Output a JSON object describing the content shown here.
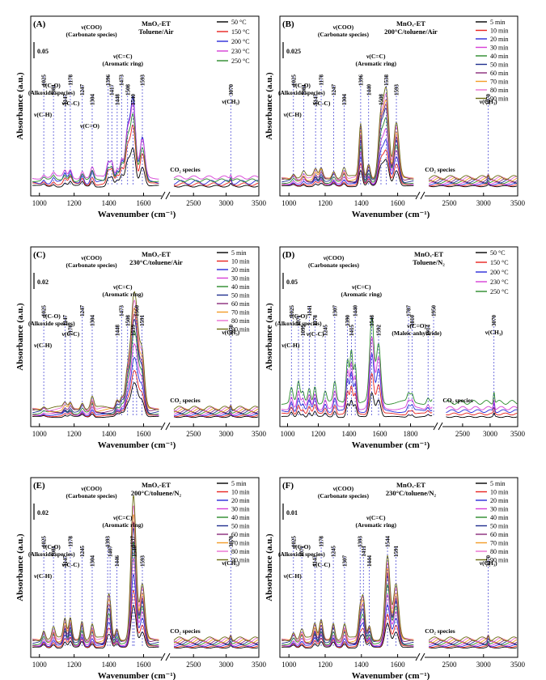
{
  "chart_data": [
    {
      "type": "line",
      "panel_letter": "(A)",
      "info_lines": [
        "MnOₓ-ET",
        "Toluene/Air"
      ],
      "scale": "0.05",
      "xlabel": "Wavenumber (cm⁻¹)",
      "ylabel": "Absorbance (a.u.)",
      "x_ticks": [
        "1000",
        "1200",
        "1400",
        "1600",
        "2500",
        "3000",
        "3500"
      ],
      "series": [
        {
          "name": "50 °C",
          "color": "#000000",
          "scale": 0.45,
          "offset": 0.0
        },
        {
          "name": "150 °C",
          "color": "#e8231f",
          "scale": 0.7,
          "offset": 0.02
        },
        {
          "name": "200 °C",
          "color": "#2b2bd9",
          "scale": 1.0,
          "offset": 0.04
        },
        {
          "name": "230 °C",
          "color": "#d63fd6",
          "scale": 0.85,
          "offset": 0.09
        },
        {
          "name": "250 °C",
          "color": "#2a8a2a",
          "scale": 0.75,
          "offset": 0.06
        }
      ],
      "peaks": [
        1025,
        1081,
        1147,
        1178,
        1247,
        1304,
        1396,
        1417,
        1448,
        1473,
        1508,
        1540,
        1593,
        3070
      ],
      "peak_heights": [
        0.04,
        0.05,
        0.08,
        0.1,
        0.09,
        0.12,
        0.18,
        0.2,
        0.12,
        0.22,
        0.55,
        0.85,
        0.45,
        0.05
      ],
      "band_labels": [
        {
          "text": "ν(COO)",
          "sub": "(Carbonate species)"
        },
        {
          "text": "ν(C=C)",
          "sub": "(Aromatic ring)"
        },
        {
          "text": "ν(C-O)",
          "sub": "(Alkoxide species)"
        },
        {
          "text": "ν(C-C)",
          "sub": ""
        },
        {
          "text": "ν(C-H)",
          "sub": ""
        },
        {
          "text": "ν(C=O)",
          "sub": ""
        },
        {
          "text": "ν(CH₃)",
          "sub": ""
        },
        {
          "text": "CO₂ species",
          "sub": ""
        }
      ]
    },
    {
      "type": "line",
      "panel_letter": "(B)",
      "info_lines": [
        "MnOₓ-ET",
        "200°C/toluene/Air"
      ],
      "scale": "0.025",
      "xlabel": "Wavenumber (cm⁻¹)",
      "ylabel": "Absorbance (a.u.)",
      "x_ticks": [
        "1000",
        "1200",
        "1400",
        "1600",
        "2500",
        "3000",
        "3500"
      ],
      "series": [
        {
          "name": "5 min",
          "color": "#000000",
          "scale": 0.3,
          "offset": 0.0
        },
        {
          "name": "10 min",
          "color": "#e8231f",
          "scale": 0.4,
          "offset": 0.01
        },
        {
          "name": "20 min",
          "color": "#2b2bd9",
          "scale": 0.5,
          "offset": 0.02
        },
        {
          "name": "30 min",
          "color": "#d63fd6",
          "scale": 0.6,
          "offset": 0.03
        },
        {
          "name": "40 min",
          "color": "#2a8a2a",
          "scale": 0.7,
          "offset": 0.04
        },
        {
          "name": "50 min",
          "color": "#1f2f8f",
          "scale": 0.8,
          "offset": 0.05
        },
        {
          "name": "60 min",
          "color": "#8a2a7a",
          "scale": 0.85,
          "offset": 0.06
        },
        {
          "name": "70 min",
          "color": "#f39c26",
          "scale": 0.9,
          "offset": 0.07
        },
        {
          "name": "80 min",
          "color": "#e96fd0",
          "scale": 0.95,
          "offset": 0.08
        },
        {
          "name": "90 min",
          "color": "#6b6b12",
          "scale": 1.0,
          "offset": 0.09
        }
      ],
      "peaks": [
        1025,
        1081,
        1147,
        1178,
        1247,
        1304,
        1396,
        1440,
        1508,
        1538,
        1593,
        3070
      ],
      "peak_heights": [
        0.05,
        0.06,
        0.08,
        0.1,
        0.08,
        0.1,
        0.55,
        0.15,
        0.65,
        0.85,
        0.55,
        0.04
      ],
      "band_labels": [
        {
          "text": "ν(COO)",
          "sub": "(Carbonate species)"
        },
        {
          "text": "ν(C=C)",
          "sub": "(Aromatic ring)"
        },
        {
          "text": "ν(C-O)",
          "sub": "(Alkoxide species)"
        },
        {
          "text": "ν(C-H)",
          "sub": ""
        },
        {
          "text": "ν(C-C)",
          "sub": ""
        },
        {
          "text": "ν(CH₃)",
          "sub": ""
        },
        {
          "text": "CO₂ species",
          "sub": ""
        }
      ]
    },
    {
      "type": "line",
      "panel_letter": "(C)",
      "info_lines": [
        "MnOₓ-ET",
        "230°C/toluene/Air"
      ],
      "scale": "0.02",
      "xlabel": "Wavenumber (cm⁻¹)",
      "ylabel": "Absorbance (a.u.)",
      "x_ticks": [
        "1000",
        "1200",
        "1400",
        "1600",
        "2500",
        "3000",
        "3500"
      ],
      "series": [
        {
          "name": "5 min",
          "color": "#000000",
          "scale": 0.3,
          "offset": 0.0
        },
        {
          "name": "10 min",
          "color": "#e8231f",
          "scale": 0.4,
          "offset": 0.01
        },
        {
          "name": "20 min",
          "color": "#2b2bd9",
          "scale": 0.5,
          "offset": 0.02
        },
        {
          "name": "30 min",
          "color": "#d63fd6",
          "scale": 0.6,
          "offset": 0.03
        },
        {
          "name": "40 min",
          "color": "#2a8a2a",
          "scale": 0.7,
          "offset": 0.04
        },
        {
          "name": "50 min",
          "color": "#1f2f8f",
          "scale": 0.8,
          "offset": 0.05
        },
        {
          "name": "60 min",
          "color": "#8a2a7a",
          "scale": 0.85,
          "offset": 0.06
        },
        {
          "name": "70 min",
          "color": "#f39c26",
          "scale": 0.9,
          "offset": 0.07
        },
        {
          "name": "80 min",
          "color": "#e96fd0",
          "scale": 0.95,
          "offset": 0.08
        },
        {
          "name": "90 min",
          "color": "#6b6b12",
          "scale": 1.0,
          "offset": 0.09
        }
      ],
      "peaks": [
        1025,
        1147,
        1178,
        1247,
        1304,
        1448,
        1473,
        1508,
        1539,
        1560,
        1591,
        3070
      ],
      "peak_heights": [
        0.03,
        0.05,
        0.06,
        0.07,
        0.12,
        0.1,
        0.12,
        0.4,
        0.85,
        0.7,
        0.55,
        0.04
      ],
      "band_labels": [
        {
          "text": "ν(COO)",
          "sub": "(Carbonate species)"
        },
        {
          "text": "ν(C=C)",
          "sub": "(Aromatic ring)"
        },
        {
          "text": "ν(C-O)",
          "sub": "(Alkoxide species)"
        },
        {
          "text": "ν(C-C)",
          "sub": ""
        },
        {
          "text": "ν(C-H)",
          "sub": ""
        },
        {
          "text": "ν(CH₃)",
          "sub": ""
        },
        {
          "text": "CO₂ species",
          "sub": ""
        }
      ]
    },
    {
      "type": "line",
      "panel_letter": "(D)",
      "info_lines": [
        "MnOₓ-ET",
        "Toluene/N₂"
      ],
      "scale": "0.05",
      "xlabel": "Wavenumber (cm⁻¹)",
      "ylabel": "Absorbance (a.u.)",
      "x_ticks": [
        "1000",
        "1200",
        "1400",
        "1600",
        "1800",
        "2500",
        "3000",
        "3500"
      ],
      "series": [
        {
          "name": "50 °C",
          "color": "#000000",
          "scale": 0.3,
          "offset": 0.0
        },
        {
          "name": "150 °C",
          "color": "#e8231f",
          "scale": 0.5,
          "offset": 0.03
        },
        {
          "name": "200 °C",
          "color": "#2b2bd9",
          "scale": 0.7,
          "offset": 0.06
        },
        {
          "name": "230 °C",
          "color": "#d63fd6",
          "scale": 0.85,
          "offset": 0.09
        },
        {
          "name": "250 °C",
          "color": "#2a8a2a",
          "scale": 1.0,
          "offset": 0.15
        }
      ],
      "peaks": [
        1025,
        1071,
        1099,
        1141,
        1178,
        1245,
        1307,
        1390,
        1415,
        1440,
        1548,
        1592,
        1787,
        1810,
        1914,
        1950,
        3070
      ],
      "peak_heights": [
        0.15,
        0.2,
        0.1,
        0.15,
        0.18,
        0.12,
        0.2,
        0.45,
        0.55,
        0.4,
        0.85,
        0.6,
        0.08,
        0.08,
        0.06,
        0.06,
        0.12
      ],
      "band_labels": [
        {
          "text": "ν(COO)",
          "sub": "(Carbonate species)"
        },
        {
          "text": "ν(C=C)",
          "sub": "(Aromatic ring)"
        },
        {
          "text": "ν(C-O)",
          "sub": "(Alkoxide species)"
        },
        {
          "text": "ν(C-H)",
          "sub": ""
        },
        {
          "text": "ν(C-C)",
          "sub": ""
        },
        {
          "text": "ν(C=O)",
          "sub": "(Maleic anhydride)"
        },
        {
          "text": "ν(CH₃)",
          "sub": ""
        },
        {
          "text": "CO₂ species",
          "sub": ""
        }
      ]
    },
    {
      "type": "line",
      "panel_letter": "(E)",
      "info_lines": [
        "MnOₓ-ET",
        "200°C/toluene/N₂"
      ],
      "scale": "0.02",
      "xlabel": "Wavenumber (cm⁻¹)",
      "ylabel": "Absorbance (a.u.)",
      "x_ticks": [
        "1000",
        "1200",
        "1400",
        "1600",
        "2500",
        "3000",
        "3500"
      ],
      "series": [
        {
          "name": "5 min",
          "color": "#000000",
          "scale": 0.3,
          "offset": 0.0
        },
        {
          "name": "10 min",
          "color": "#e8231f",
          "scale": 0.4,
          "offset": 0.01
        },
        {
          "name": "20 min",
          "color": "#2b2bd9",
          "scale": 0.5,
          "offset": 0.02
        },
        {
          "name": "30 min",
          "color": "#d63fd6",
          "scale": 0.6,
          "offset": 0.03
        },
        {
          "name": "40 min",
          "color": "#2a8a2a",
          "scale": 0.7,
          "offset": 0.04
        },
        {
          "name": "50 min",
          "color": "#1f2f8f",
          "scale": 0.8,
          "offset": 0.05
        },
        {
          "name": "60 min",
          "color": "#8a2a7a",
          "scale": 0.85,
          "offset": 0.06
        },
        {
          "name": "70 min",
          "color": "#f39c26",
          "scale": 0.9,
          "offset": 0.07
        },
        {
          "name": "80 min",
          "color": "#e96fd0",
          "scale": 0.95,
          "offset": 0.08
        },
        {
          "name": "90 min",
          "color": "#6b6b12",
          "scale": 1.0,
          "offset": 0.09
        }
      ],
      "peaks": [
        1025,
        1081,
        1147,
        1178,
        1245,
        1304,
        1393,
        1407,
        1446,
        1537,
        1546,
        1593,
        3070
      ],
      "peak_heights": [
        0.1,
        0.12,
        0.2,
        0.22,
        0.2,
        0.15,
        0.3,
        0.32,
        0.12,
        0.7,
        0.85,
        0.55,
        0.05
      ],
      "band_labels": [
        {
          "text": "ν(COO)",
          "sub": "(Carbonate species)"
        },
        {
          "text": "ν(C=C)",
          "sub": "(Aromatic ring)"
        },
        {
          "text": "ν(C-O)",
          "sub": "(Alkoxide species)"
        },
        {
          "text": "ν(C-C)",
          "sub": ""
        },
        {
          "text": "ν(C-H)",
          "sub": ""
        },
        {
          "text": "ν(CH₃)",
          "sub": ""
        },
        {
          "text": "CO₂ species",
          "sub": ""
        }
      ]
    },
    {
      "type": "line",
      "panel_letter": "(F)",
      "info_lines": [
        "MnOₓ-ET",
        "230°C/toluene/N₂"
      ],
      "scale": "0.01",
      "xlabel": "Wavenumber (cm⁻¹)",
      "ylabel": "Absorbance (a.u.)",
      "x_ticks": [
        "1000",
        "1200",
        "1400",
        "1600",
        "2500",
        "3000",
        "3500"
      ],
      "series": [
        {
          "name": "5 min",
          "color": "#000000",
          "scale": 0.3,
          "offset": 0.0
        },
        {
          "name": "10 min",
          "color": "#e8231f",
          "scale": 0.4,
          "offset": 0.01
        },
        {
          "name": "20 min",
          "color": "#2b2bd9",
          "scale": 0.5,
          "offset": 0.02
        },
        {
          "name": "30 min",
          "color": "#d63fd6",
          "scale": 0.6,
          "offset": 0.03
        },
        {
          "name": "40 min",
          "color": "#2a8a2a",
          "scale": 0.7,
          "offset": 0.04
        },
        {
          "name": "50 min",
          "color": "#1f2f8f",
          "scale": 0.8,
          "offset": 0.05
        },
        {
          "name": "60 min",
          "color": "#8a2a7a",
          "scale": 0.85,
          "offset": 0.06
        },
        {
          "name": "70 min",
          "color": "#f39c26",
          "scale": 0.9,
          "offset": 0.07
        },
        {
          "name": "80 min",
          "color": "#e96fd0",
          "scale": 0.95,
          "offset": 0.08
        },
        {
          "name": "90 min",
          "color": "#6b6b12",
          "scale": 1.0,
          "offset": 0.09
        }
      ],
      "peaks": [
        1025,
        1071,
        1143,
        1178,
        1245,
        1307,
        1393,
        1411,
        1444,
        1544,
        1591,
        3070
      ],
      "peak_heights": [
        0.08,
        0.1,
        0.15,
        0.2,
        0.18,
        0.15,
        0.3,
        0.4,
        0.15,
        0.85,
        0.55,
        0.05
      ],
      "band_labels": [
        {
          "text": "ν(COO)",
          "sub": "(Carbonate species)"
        },
        {
          "text": "ν(C=C)",
          "sub": "(Aromatic ring)"
        },
        {
          "text": "ν(C-O)",
          "sub": "(Alkoxide species)"
        },
        {
          "text": "ν(C-C)",
          "sub": ""
        },
        {
          "text": "ν(C-H)",
          "sub": ""
        },
        {
          "text": "ν(CH₃)",
          "sub": ""
        },
        {
          "text": "CO₂ species",
          "sub": ""
        }
      ]
    }
  ]
}
